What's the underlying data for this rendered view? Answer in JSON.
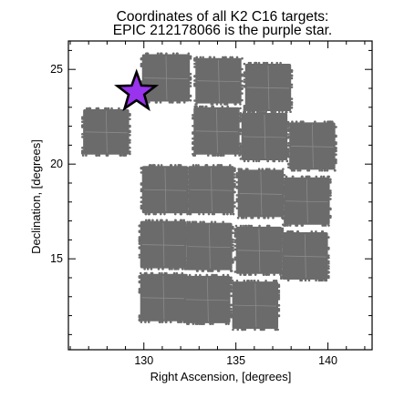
{
  "chart_data": {
    "type": "scatter",
    "title": [
      "Coordinates of all K2 C16 targets:",
      "EPIC 212178066 is the purple star."
    ],
    "xlabel": "Right Ascension, [degrees]",
    "ylabel": "Declination, [degrees]",
    "xlim": [
      125.9,
      142.4
    ],
    "ylim": [
      10.2,
      26.5
    ],
    "xticks": [
      130,
      135,
      140
    ],
    "yticks": [
      15,
      20,
      25
    ],
    "grid": false,
    "colors": {
      "targets": "#6b6b6b",
      "highlight": "#9933ee",
      "highlight_edge": "#000000"
    },
    "series": [
      {
        "marker": "dense-dots",
        "note_modules": "Each target module is a square patch of many targets; values below are module corners in data units (RA min, RA max, Dec min, Dec max).",
        "modules": [
          [
            129.9,
            132.5,
            23.3,
            25.8
          ],
          [
            132.8,
            135.3,
            23.2,
            25.6
          ],
          [
            135.5,
            138.0,
            22.8,
            25.3
          ],
          [
            126.7,
            129.2,
            20.5,
            22.9
          ],
          [
            132.7,
            135.2,
            20.5,
            23.0
          ],
          [
            135.3,
            137.8,
            20.2,
            22.7
          ],
          [
            137.9,
            140.4,
            19.7,
            22.2
          ],
          [
            129.9,
            132.4,
            17.4,
            19.9
          ],
          [
            132.4,
            134.9,
            17.4,
            19.9
          ],
          [
            135.1,
            137.6,
            17.2,
            19.7
          ],
          [
            137.6,
            140.1,
            16.8,
            19.3
          ],
          [
            129.8,
            132.3,
            14.5,
            17.0
          ],
          [
            132.3,
            134.8,
            14.4,
            16.9
          ],
          [
            135.0,
            137.5,
            14.2,
            16.7
          ],
          [
            137.5,
            140.0,
            13.9,
            16.4
          ],
          [
            129.8,
            132.3,
            11.7,
            14.2
          ],
          [
            132.2,
            134.7,
            11.6,
            14.1
          ],
          [
            134.8,
            137.3,
            11.3,
            13.8
          ]
        ]
      },
      {
        "marker": "star",
        "points": [
          {
            "x": 129.6,
            "y": 23.8
          }
        ]
      }
    ]
  }
}
